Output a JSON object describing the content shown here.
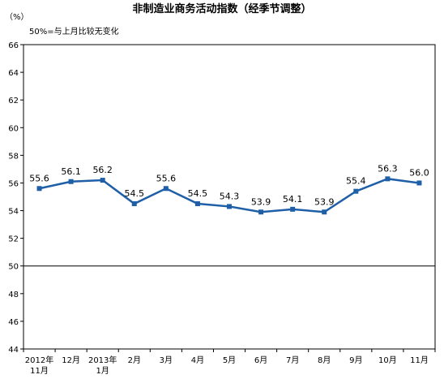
{
  "chart_data": {
    "type": "line",
    "title": "非制造业商务活动指数（经季节调整）",
    "unit_label": "（%）",
    "note": "50%=与上月比较无变化",
    "categories": [
      [
        "2012年",
        "11月"
      ],
      [
        "12月"
      ],
      [
        "2013年",
        "1月"
      ],
      [
        "2月"
      ],
      [
        "3月"
      ],
      [
        "4月"
      ],
      [
        "5月"
      ],
      [
        "6月"
      ],
      [
        "7月"
      ],
      [
        "8月"
      ],
      [
        "9月"
      ],
      [
        "10月"
      ],
      [
        "11月"
      ]
    ],
    "series": [
      {
        "values": [
          55.6,
          56.1,
          56.2,
          54.5,
          55.6,
          54.5,
          54.3,
          53.9,
          54.1,
          53.9,
          55.4,
          56.3,
          56.0
        ],
        "labels": [
          "55.6",
          "56.1",
          "56.2",
          "54.5",
          "55.6",
          "54.5",
          "54.3",
          "53.9",
          "54.1",
          "53.9",
          "55.4",
          "56.3",
          "56.0"
        ],
        "color": "#1f5fa8"
      }
    ],
    "yticks": [
      44,
      46,
      48,
      50,
      52,
      54,
      56,
      58,
      60,
      62,
      64,
      66
    ],
    "ylim": [
      44,
      66
    ],
    "reference_line": 50,
    "grid": false,
    "legend": "none"
  }
}
